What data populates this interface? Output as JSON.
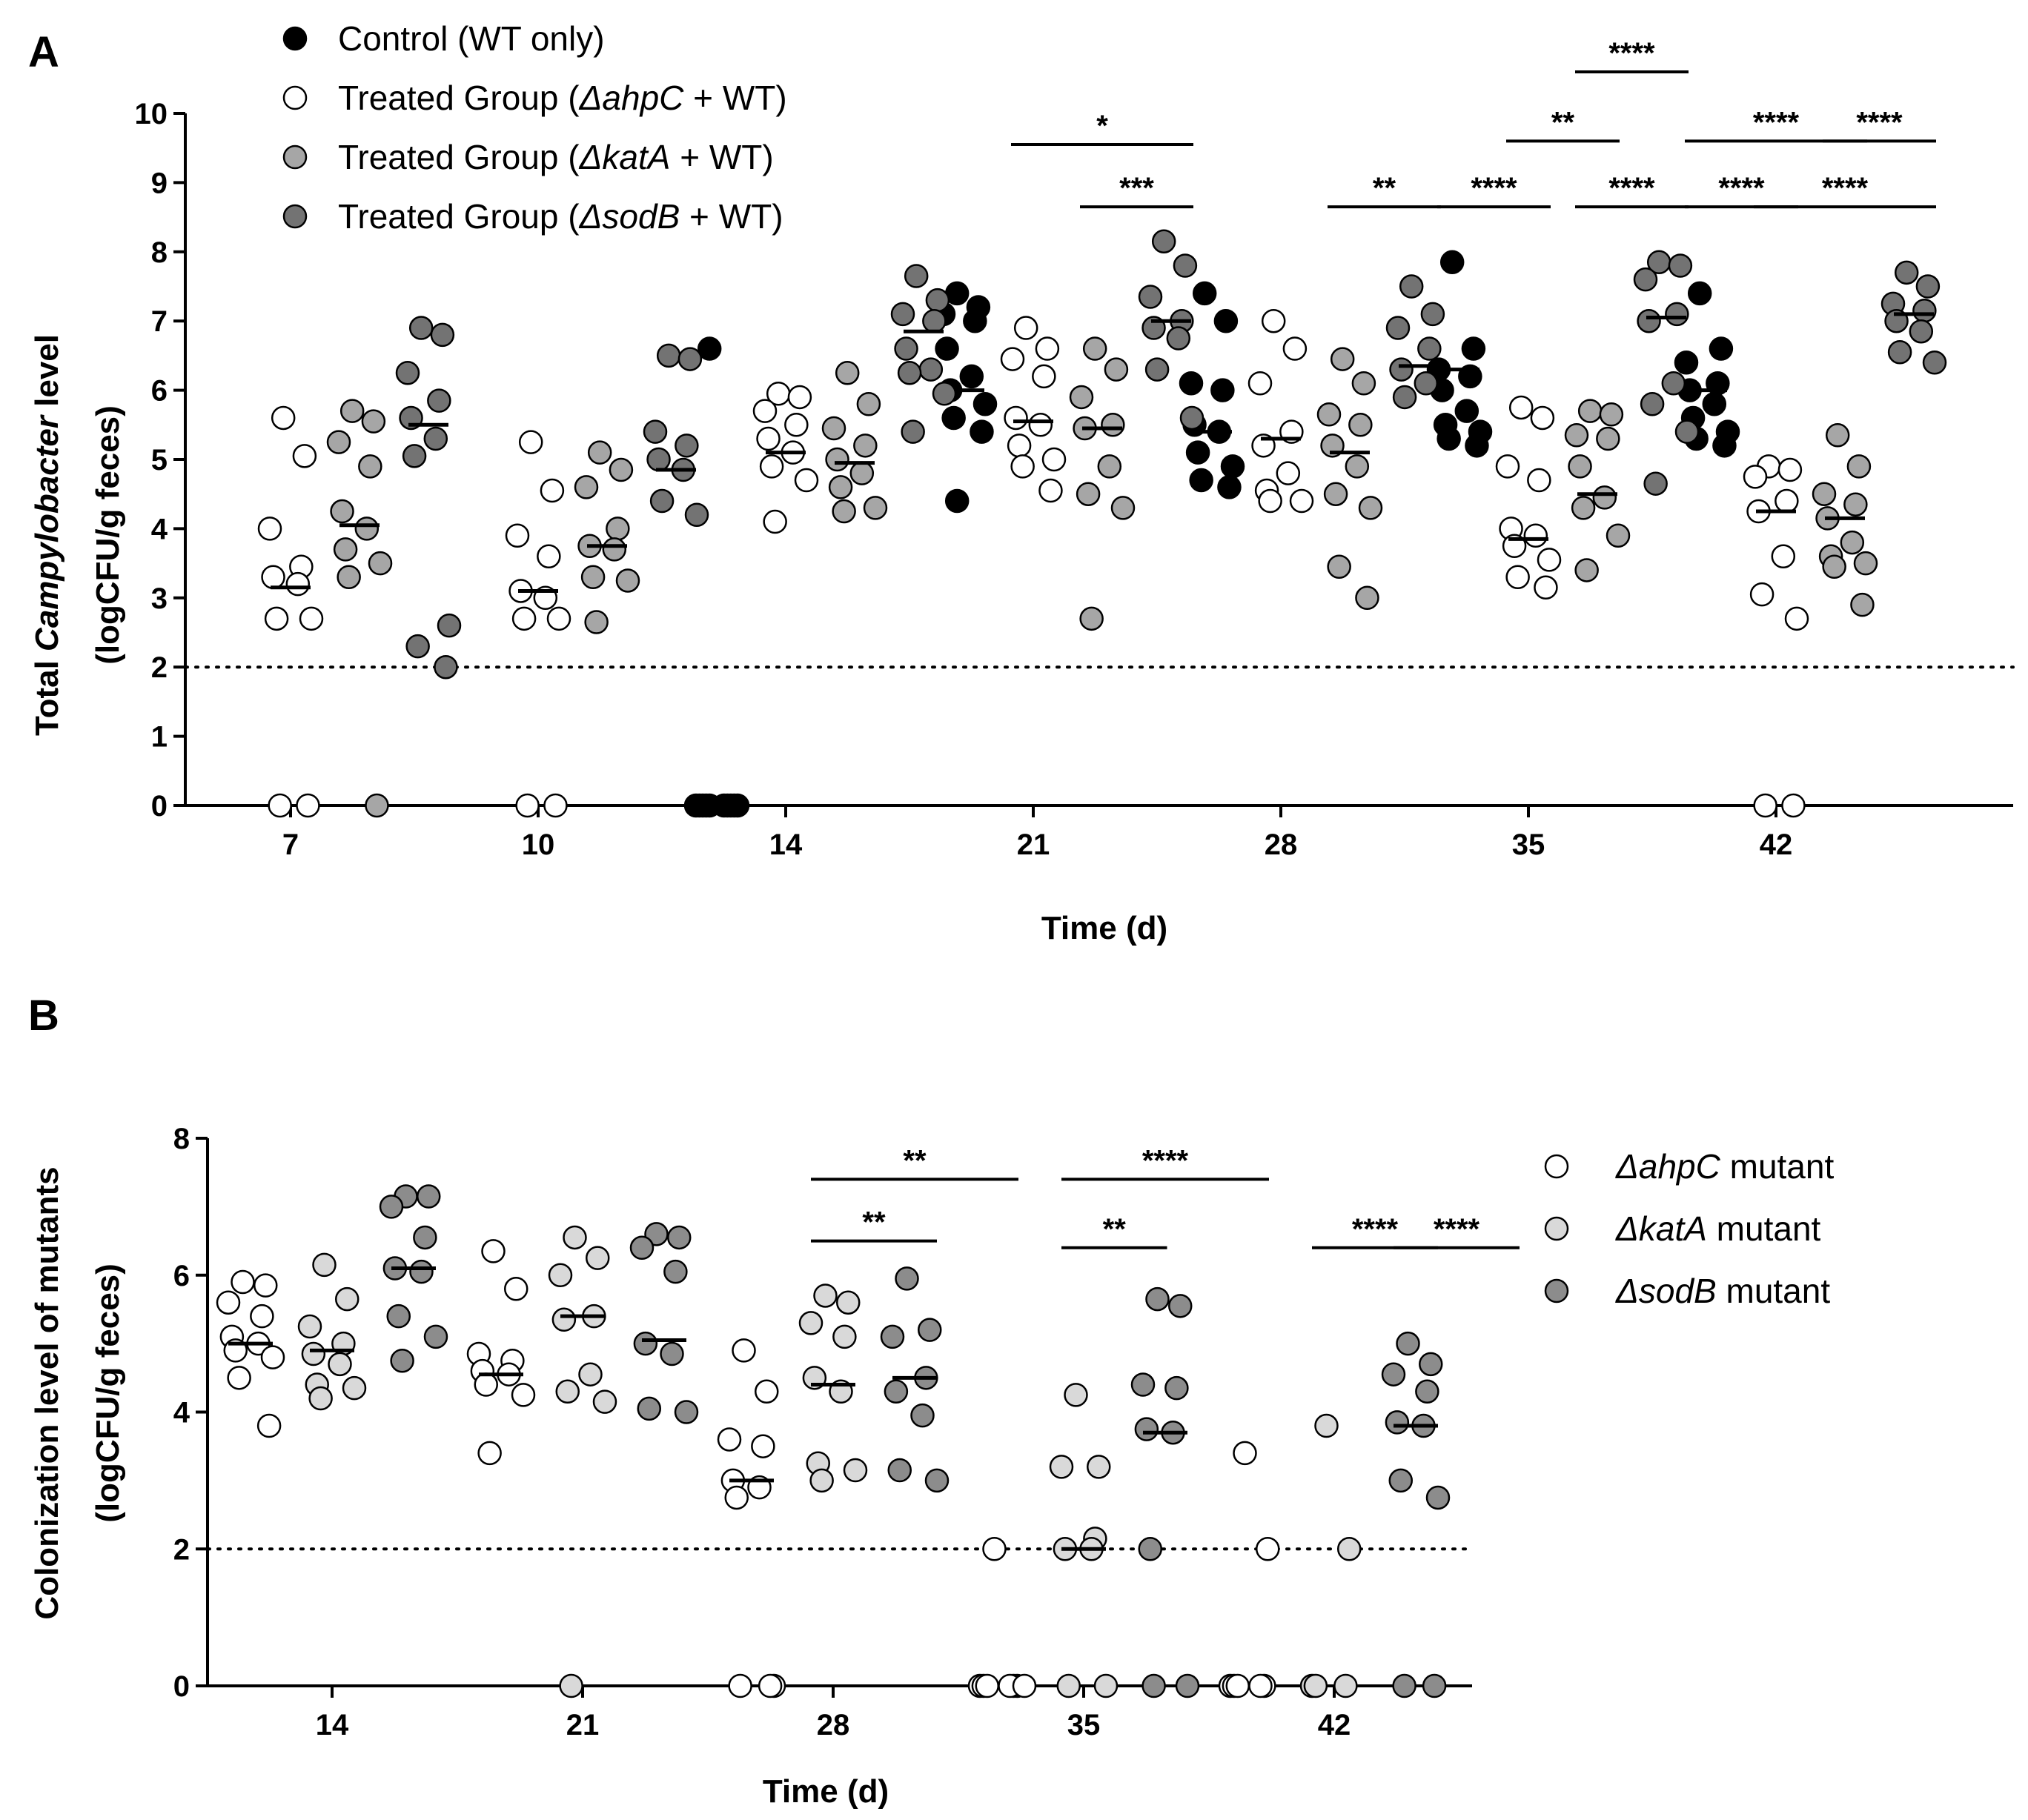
{
  "colors": {
    "control": "#000000",
    "ahpC": "#ffffff",
    "katA": "#a6a6a6",
    "sodB": "#737373",
    "ahpC_B": "#ffffff",
    "katA_B": "#d9d9d9",
    "sodB_B": "#8c8c8c",
    "stroke": "#000000"
  },
  "chart_data": [
    {
      "type": "scatter",
      "panel": "A",
      "panel_label": "A",
      "xlabel": "Time (d)",
      "ylabel_line1_pre": "Total ",
      "ylabel_line1_italic": "Campylobacter",
      "ylabel_line1_post": " level",
      "ylabel_line2": "(logCFU/g feces)",
      "ylim": [
        0,
        10
      ],
      "yticks": [
        "0",
        "1",
        "2",
        "3",
        "4",
        "5",
        "6",
        "7",
        "8",
        "9",
        "10"
      ],
      "detection_limit": 2,
      "categories": [
        "7",
        "10",
        "14",
        "21",
        "28",
        "35",
        "42"
      ],
      "legend": [
        {
          "key": "control",
          "pre": "Control (WT only)",
          "italic": "",
          "post": ""
        },
        {
          "key": "ahpC",
          "pre": "Treated Group (",
          "italic": "ΔahpC",
          "post": " + WT)"
        },
        {
          "key": "katA",
          "pre": "Treated Group (",
          "italic": "ΔkatA",
          "post": " + WT)"
        },
        {
          "key": "sodB",
          "pre": "Treated Group (",
          "italic": "ΔsodB",
          "post": " + WT)"
        }
      ],
      "series": [
        {
          "name": "control",
          "points": [
            [],
            [],
            [
              6.6,
              0,
              0,
              0,
              0,
              0,
              0,
              0,
              0,
              0,
              0
            ],
            [
              7.4,
              7.2,
              7.1,
              7.0,
              6.6,
              6.2,
              6.0,
              5.8,
              5.6,
              5.4,
              4.4
            ],
            [
              7.4,
              7.0,
              6.1,
              6.0,
              5.5,
              5.4,
              5.1,
              4.9,
              4.7,
              4.6
            ],
            [
              7.85,
              6.6,
              6.3,
              6.2,
              6.0,
              5.7,
              5.5,
              5.4,
              5.3,
              5.2
            ],
            [
              7.4,
              6.6,
              6.4,
              6.1,
              6.0,
              5.8,
              5.6,
              5.4,
              5.3,
              5.2
            ]
          ],
          "medians": [
            null,
            null,
            0,
            6.0,
            5.4,
            6.3,
            6.0
          ]
        },
        {
          "name": "ahpC",
          "points": [
            [
              5.6,
              5.05,
              4.0,
              3.45,
              3.3,
              3.2,
              2.7,
              2.7,
              0,
              0
            ],
            [
              5.25,
              4.55,
              3.9,
              3.6,
              3.1,
              3.0,
              2.7,
              2.7,
              0,
              0
            ],
            [
              5.95,
              5.9,
              5.7,
              5.5,
              5.3,
              5.1,
              4.9,
              4.7,
              4.1
            ],
            [
              6.9,
              6.6,
              6.45,
              6.2,
              5.6,
              5.5,
              5.2,
              5.0,
              4.9,
              4.55
            ],
            [
              7.0,
              6.6,
              6.1,
              5.4,
              5.2,
              4.8,
              4.55,
              4.4,
              4.4
            ],
            [
              5.75,
              5.6,
              4.9,
              4.7,
              4.0,
              3.9,
              3.75,
              3.55,
              3.3,
              3.15
            ],
            [
              4.9,
              4.85,
              4.75,
              4.4,
              4.25,
              3.6,
              3.05,
              2.7,
              0,
              0
            ]
          ],
          "medians": [
            3.15,
            3.1,
            5.1,
            5.55,
            5.3,
            3.85,
            4.25
          ]
        },
        {
          "name": "katA",
          "points": [
            [
              5.7,
              5.55,
              5.25,
              4.9,
              4.25,
              4.0,
              3.7,
              3.5,
              3.3,
              0
            ],
            [
              5.1,
              4.85,
              4.6,
              4.0,
              3.75,
              3.7,
              3.3,
              3.25,
              2.65
            ],
            [
              6.25,
              5.8,
              5.45,
              5.2,
              5.0,
              4.8,
              4.6,
              4.3,
              4.25
            ],
            [
              6.6,
              6.3,
              5.9,
              5.5,
              5.45,
              4.9,
              4.5,
              4.3,
              2.7
            ],
            [
              6.45,
              6.1,
              5.65,
              5.5,
              5.2,
              4.9,
              4.5,
              4.3,
              3.45,
              3.0
            ],
            [
              5.7,
              5.65,
              5.35,
              5.3,
              4.9,
              4.45,
              4.3,
              3.9,
              3.4
            ],
            [
              5.35,
              4.9,
              4.5,
              4.35,
              4.15,
              3.8,
              3.6,
              3.5,
              3.45,
              2.9
            ]
          ],
          "medians": [
            4.05,
            3.75,
            4.95,
            5.45,
            5.1,
            4.5,
            4.15
          ]
        },
        {
          "name": "sodB",
          "points": [
            [
              6.9,
              6.8,
              6.25,
              5.85,
              5.6,
              5.3,
              5.05,
              2.6,
              2.3,
              2.0
            ],
            [
              6.5,
              6.45,
              5.4,
              5.2,
              5.0,
              4.85,
              4.4,
              4.2
            ],
            [
              7.65,
              7.3,
              7.1,
              7.0,
              6.6,
              6.3,
              6.25,
              5.95,
              5.4
            ],
            [
              8.15,
              7.8,
              7.35,
              7.0,
              6.9,
              6.75,
              6.3,
              5.6
            ],
            [
              7.5,
              7.1,
              6.9,
              6.6,
              6.3,
              6.1,
              5.9
            ],
            [
              7.85,
              7.8,
              7.6,
              7.1,
              7.0,
              6.1,
              5.8,
              5.4,
              4.65
            ],
            [
              7.7,
              7.5,
              7.25,
              7.15,
              7.0,
              6.85,
              6.55,
              6.4
            ]
          ],
          "medians": [
            5.5,
            4.85,
            6.85,
            7.0,
            6.35,
            7.05,
            7.1
          ]
        }
      ],
      "significance": [
        {
          "group": 3,
          "from": 0,
          "to": 2,
          "y": 9.55,
          "label": "*"
        },
        {
          "group": 3,
          "from": 1,
          "to": 2,
          "y": 8.65,
          "label": "***"
        },
        {
          "group": 4,
          "from": 1,
          "to": 2,
          "y": 8.65,
          "label": "**"
        },
        {
          "group": 5,
          "from": 1,
          "to": 2,
          "y": 10.6,
          "label": "****"
        },
        {
          "group": 5,
          "from": 0,
          "to": 1,
          "y": 9.6,
          "label": "**"
        },
        {
          "group": 5,
          "from": -1,
          "to": 0,
          "y": 8.65,
          "label": "****"
        },
        {
          "group": 5,
          "from": 1,
          "to": 2,
          "y": 8.65,
          "label": "****"
        },
        {
          "group": 6,
          "from": -1,
          "to": 1,
          "y": 9.6,
          "label": "****"
        },
        {
          "group": 6,
          "from": 1,
          "to": 2,
          "y": 9.6,
          "label": "****"
        },
        {
          "group": 6,
          "from": -1,
          "to": 0,
          "y": 8.65,
          "label": "****"
        },
        {
          "group": 6,
          "from": 0,
          "to": 2,
          "y": 8.65,
          "label": "****"
        }
      ]
    },
    {
      "type": "scatter",
      "panel": "B",
      "panel_label": "B",
      "xlabel": "Time (d)",
      "ylabel_line1": "Colonization  level of mutants",
      "ylabel_line2": "(logCFU/g feces)",
      "ylim": [
        0,
        8
      ],
      "yticks": [
        "0",
        "2",
        "4",
        "6",
        "8"
      ],
      "detection_limit": 2,
      "categories": [
        "14",
        "21",
        "28",
        "35",
        "42"
      ],
      "legend": [
        {
          "key": "ahpC_B",
          "italic": "ΔahpC",
          "post": " mutant"
        },
        {
          "key": "katA_B",
          "italic": "ΔkatA",
          "post": " mutant"
        },
        {
          "key": "sodB_B",
          "italic": "ΔsodB",
          "post": " mutant"
        }
      ],
      "series": [
        {
          "name": "ahpC",
          "points": [
            [
              5.9,
              5.85,
              5.6,
              5.4,
              5.1,
              5.0,
              4.9,
              4.8,
              4.5,
              3.8
            ],
            [
              6.35,
              5.8,
              4.85,
              4.75,
              4.6,
              4.55,
              4.4,
              4.25,
              3.4
            ],
            [
              4.9,
              4.3,
              3.6,
              3.5,
              3.0,
              2.9,
              2.75,
              0,
              0,
              0
            ],
            [
              2.0,
              0,
              0,
              0,
              0,
              0,
              0,
              0
            ],
            [
              3.4,
              2.0,
              0,
              0,
              0,
              0,
              0
            ]
          ],
          "medians": [
            5.0,
            4.55,
            3.0,
            null,
            null
          ]
        },
        {
          "name": "katA",
          "points": [
            [
              6.15,
              5.65,
              5.25,
              5.0,
              4.85,
              4.7,
              4.4,
              4.35,
              4.2
            ],
            [
              6.55,
              6.25,
              6.0,
              5.4,
              5.35,
              4.55,
              4.3,
              4.15,
              0
            ],
            [
              5.7,
              5.6,
              5.3,
              5.1,
              4.5,
              4.3,
              3.25,
              3.15,
              3.0
            ],
            [
              4.25,
              3.2,
              3.2,
              2.15,
              2.0,
              2.0,
              0,
              0
            ],
            [
              3.8,
              2.0,
              0,
              0,
              0
            ]
          ],
          "medians": [
            4.9,
            5.4,
            4.4,
            2.0,
            null
          ]
        },
        {
          "name": "sodB",
          "points": [
            [
              7.15,
              7.15,
              7.0,
              6.55,
              6.1,
              6.05,
              5.4,
              5.1,
              4.75
            ],
            [
              6.6,
              6.55,
              6.4,
              6.05,
              5.0,
              4.85,
              4.05,
              4.0
            ],
            [
              5.95,
              5.2,
              5.1,
              4.5,
              4.3,
              3.95,
              3.15,
              3.0
            ],
            [
              5.65,
              5.55,
              4.4,
              4.35,
              3.75,
              3.7,
              2.0,
              0,
              0
            ],
            [
              5.0,
              4.7,
              4.55,
              4.3,
              3.85,
              3.8,
              3.0,
              2.75,
              0,
              0
            ]
          ],
          "medians": [
            6.1,
            5.05,
            4.5,
            3.7,
            3.8
          ]
        }
      ],
      "significance": [
        {
          "group": 2,
          "from": 0,
          "to": 2,
          "y": 7.4,
          "label": "**"
        },
        {
          "group": 2,
          "from": 0,
          "to": 1,
          "y": 6.5,
          "label": "**"
        },
        {
          "group": 3,
          "from": 0,
          "to": 2,
          "y": 7.4,
          "label": "****"
        },
        {
          "group": 3,
          "from": 0,
          "to": 0.75,
          "y": 6.4,
          "label": "**"
        },
        {
          "group": 4,
          "from": 0,
          "to": 1,
          "y": 6.4,
          "label": "****"
        },
        {
          "group": 4,
          "from": 1,
          "to": 2,
          "y": 6.4,
          "label": "****"
        }
      ]
    }
  ]
}
